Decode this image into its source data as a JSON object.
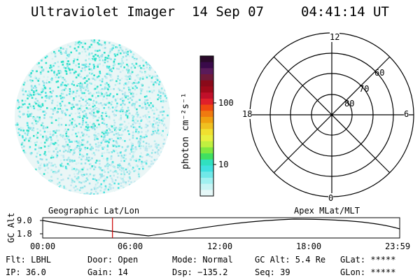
{
  "header": {
    "instrument": "Ultraviolet Imager",
    "date": "14 Sep 07",
    "time": "04:41:14 UT"
  },
  "colorbar": {
    "unit_label": "photon cm⁻²s⁻¹",
    "ticks": [
      "100",
      "10"
    ],
    "colors": [
      "#2a0a2a",
      "#3a0a4a",
      "#5a1a5a",
      "#701a3a",
      "#8a0a1a",
      "#a00a1a",
      "#c0102a",
      "#e0202a",
      "#f04a10",
      "#f07a10",
      "#f0a010",
      "#f0c020",
      "#f0e030",
      "#e8f040",
      "#c0f040",
      "#80e840",
      "#40e060",
      "#30e0c0",
      "#40e0e0",
      "#70e8e8",
      "#a0f0f0",
      "#c8f4f4",
      "#e6f8f8"
    ]
  },
  "polar": {
    "mlt_labels": {
      "top": "12",
      "bottom": "0",
      "left": "18",
      "right": "6"
    },
    "lat_labels": [
      "60",
      "70",
      "80"
    ]
  },
  "timeline": {
    "y_axis_label": "GC Alt",
    "y_ticks": [
      "9.0",
      "1.8"
    ],
    "left_caption": "Geographic Lat/Lon",
    "right_caption": "Apex MLat/MLT",
    "x_ticks": [
      "00:00",
      "06:00",
      "12:00",
      "18:00",
      "23:59"
    ],
    "marker_hour": 4.69,
    "marker_color": "#cc0000"
  },
  "footer": {
    "flt": "Flt: LBHL",
    "ip": "IP: 36.0",
    "door": "Door: Open",
    "gain": "Gain: 14",
    "mode": "Mode: Normal",
    "dsp": "Dsp: −135.2",
    "gcalt": "GC Alt: 5.4 Re",
    "seq": "Seq: 39",
    "glat": "GLat: *****",
    "glon": "GLon: *****"
  }
}
